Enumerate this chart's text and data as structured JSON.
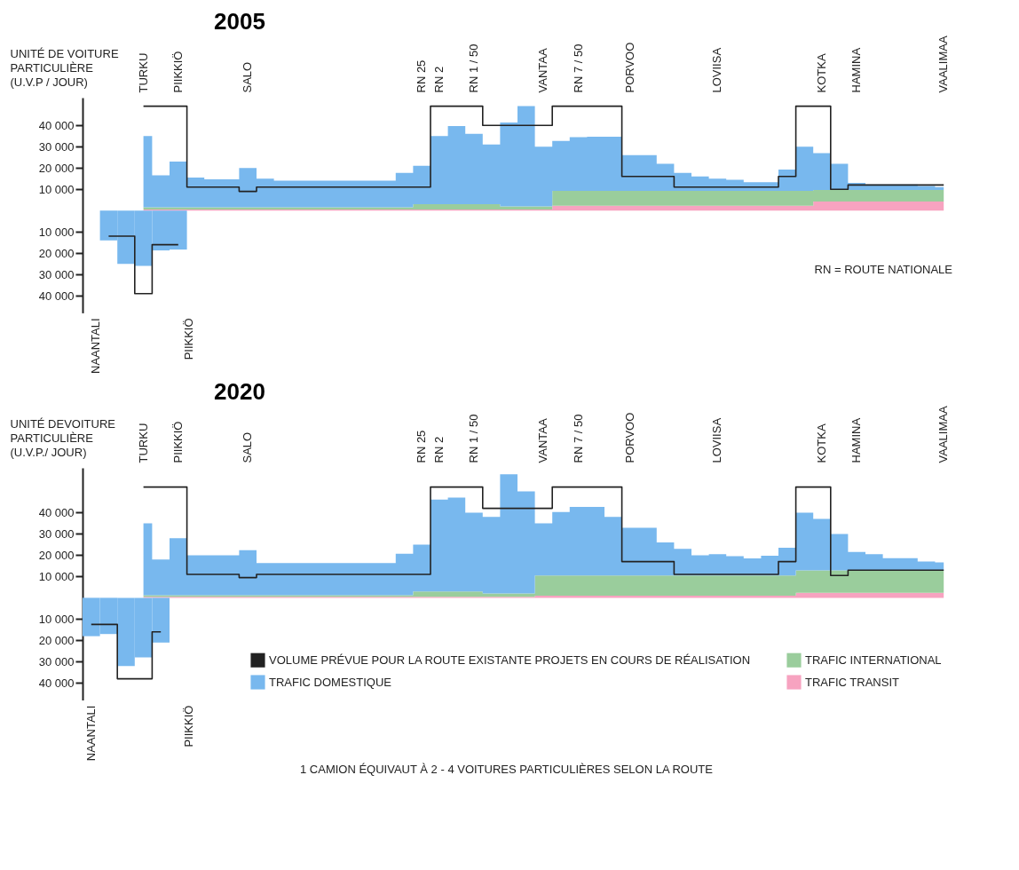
{
  "chart_data": [
    {
      "type": "area",
      "title": "2005",
      "ylabel": "UNITÉ DE VOITURE PARTICULIÈRE (U.V.P / JOUR)",
      "stacked": true,
      "categories": [
        null,
        null,
        null,
        "TURKU",
        null,
        "PIIKKIÖ",
        null,
        null,
        null,
        "SALO",
        null,
        null,
        null,
        null,
        null,
        null,
        null,
        null,
        null,
        "RN 25",
        "RN 2",
        null,
        "RN 1 / 50",
        null,
        null,
        null,
        "VANTAA",
        null,
        "RN 7 / 50",
        null,
        null,
        "PORVOO",
        null,
        null,
        null,
        null,
        "LOVIISA",
        null,
        null,
        null,
        null,
        null,
        "KOTKA",
        null,
        "HAMINA",
        null,
        null,
        null,
        null,
        "VAALIMAA"
      ],
      "ylim": [
        -48000,
        53000
      ],
      "yticks": [
        {
          "value": -40000,
          "label": "40 000"
        },
        {
          "value": -30000,
          "label": "30 000"
        },
        {
          "value": -20000,
          "label": "20 000"
        },
        {
          "value": -10000,
          "label": "10 000"
        },
        {
          "value": 10000,
          "label": "10 000"
        },
        {
          "value": 20000,
          "label": "20 000"
        },
        {
          "value": 30000,
          "label": "30 000"
        },
        {
          "value": 40000,
          "label": "40 000"
        }
      ],
      "series": [
        {
          "type": "step",
          "color": "#222222",
          "values": [
            null,
            null,
            null,
            49000,
            49000,
            49000,
            11000,
            11000,
            11000,
            9000,
            11000,
            11000,
            11000,
            11000,
            11000,
            11000,
            11000,
            11000,
            11000,
            11000,
            49000,
            49000,
            49000,
            40000,
            40000,
            40000,
            40000,
            49000,
            49000,
            49000,
            49000,
            16000,
            16000,
            16000,
            11000,
            11000,
            11000,
            11000,
            11000,
            11000,
            16000,
            49000,
            49000,
            10000,
            12000,
            12000,
            12000,
            12000,
            12000,
            12000
          ]
        },
        {
          "color": "#f7a3c0",
          "values": [
            null,
            null,
            null,
            500,
            500,
            500,
            500,
            500,
            500,
            500,
            500,
            500,
            500,
            500,
            500,
            500,
            500,
            500,
            500,
            500,
            500,
            500,
            500,
            500,
            500,
            500,
            500,
            2300,
            2300,
            2300,
            2300,
            2300,
            2300,
            2300,
            2300,
            2300,
            2300,
            2300,
            2300,
            2300,
            2300,
            2300,
            4300,
            4300,
            4300,
            4300,
            4300,
            4300,
            4300,
            4300
          ]
        },
        {
          "color": "#9acd9c",
          "values": [
            null,
            null,
            null,
            1000,
            1000,
            1000,
            1000,
            1000,
            1000,
            1000,
            1000,
            1000,
            1000,
            1000,
            1000,
            1000,
            1000,
            1000,
            1000,
            2500,
            2500,
            2500,
            2500,
            2500,
            1500,
            1500,
            1500,
            7000,
            7000,
            7000,
            7000,
            7000,
            7000,
            7000,
            7000,
            7000,
            7000,
            7000,
            7000,
            7000,
            7000,
            7000,
            5400,
            5400,
            5400,
            5400,
            5400,
            5400,
            5400,
            5400
          ]
        },
        {
          "color": "#78b8ee",
          "values": [
            null,
            null,
            null,
            33500,
            15000,
            21500,
            14000,
            13200,
            13200,
            18500,
            13500,
            12500,
            12500,
            12500,
            12500,
            12500,
            12500,
            12500,
            16200,
            18000,
            32000,
            36700,
            33000,
            28000,
            39300,
            47000,
            28000,
            23400,
            25200,
            25400,
            25400,
            16700,
            16700,
            12700,
            8400,
            6700,
            5700,
            5200,
            4000,
            4000,
            10000,
            20700,
            17300,
            12300,
            3300,
            2600,
            2600,
            2600,
            1800,
            1300
          ]
        },
        {
          "type": "bar",
          "color": "#78b8ee",
          "values": [
            null,
            -14000,
            -25000,
            -26000,
            -18700,
            -18300,
            null,
            null,
            null,
            null,
            null,
            null,
            null,
            null,
            null,
            null,
            null,
            null,
            null,
            null,
            null,
            null,
            null,
            null,
            null,
            null,
            null,
            null,
            null,
            null,
            null,
            null,
            null,
            null,
            null,
            null,
            null,
            null,
            null,
            null,
            null,
            null,
            null,
            null,
            null,
            null,
            null,
            null,
            null,
            null
          ]
        },
        {
          "type": "step",
          "color": "#222222",
          "values": [
            null,
            -12000,
            -12000,
            -39000,
            -16000,
            -16000,
            null,
            null,
            null,
            null,
            null,
            null,
            null,
            null,
            null,
            null,
            null,
            null,
            null,
            null,
            null,
            null,
            null,
            null,
            null,
            null,
            null,
            null,
            null,
            null,
            null,
            null,
            null,
            null,
            null,
            null,
            null,
            null,
            null,
            null,
            null,
            null,
            null,
            null,
            null,
            null,
            null,
            null,
            null,
            null
          ]
        }
      ],
      "annotations": [
        "NAANTALI",
        "PIIKKIÖ",
        "RN = ROUTE NATIONALE"
      ]
    },
    {
      "type": "area",
      "title": "2020",
      "ylabel": "UNITÉ DEVOITURE PARTICULIÈRE (U.V.P./ JOUR)",
      "stacked": true,
      "legend": "bottom right",
      "categories": [
        null,
        null,
        null,
        "TURKU",
        null,
        "PIIKKIÖ",
        null,
        null,
        null,
        "SALO",
        null,
        null,
        null,
        null,
        null,
        null,
        null,
        null,
        null,
        "RN 25",
        "RN 2",
        null,
        "RN 1 / 50",
        null,
        null,
        null,
        "VANTAA",
        null,
        "RN 7 / 50",
        null,
        null,
        "PORVOO",
        null,
        null,
        null,
        null,
        "LOVIISA",
        null,
        null,
        null,
        null,
        null,
        "KOTKA",
        null,
        "HAMINA",
        null,
        null,
        null,
        null,
        "VAALIMAA"
      ],
      "ylim": [
        -48000,
        61000
      ],
      "yticks": [
        {
          "value": -40000,
          "label": "40 000"
        },
        {
          "value": -30000,
          "label": "30 000"
        },
        {
          "value": -20000,
          "label": "20 000"
        },
        {
          "value": -10000,
          "label": "10 000"
        },
        {
          "value": 10000,
          "label": "10 000"
        },
        {
          "value": 20000,
          "label": "20 000"
        },
        {
          "value": 30000,
          "label": "30 000"
        },
        {
          "value": 40000,
          "label": "40 000"
        }
      ],
      "series": [
        {
          "type": "step",
          "name": "VOLUME PRÉVUE POUR LA ROUTE EXISTANTE PROJETS EN COURS DE RÉALISATION",
          "color": "#222222",
          "values": [
            null,
            null,
            null,
            52000,
            52000,
            52000,
            11000,
            11000,
            11000,
            9500,
            11000,
            11000,
            11000,
            11000,
            11000,
            11000,
            11000,
            11000,
            11000,
            11000,
            52000,
            52000,
            52000,
            42000,
            42000,
            42000,
            42000,
            52000,
            52000,
            52000,
            52000,
            17000,
            17000,
            17000,
            11000,
            11000,
            11000,
            11000,
            11000,
            11000,
            17000,
            52000,
            52000,
            10500,
            13000,
            13000,
            13000,
            13000,
            13000,
            13000
          ]
        },
        {
          "name": "TRAFIC TRANSIT",
          "color": "#f7a3c0",
          "values": [
            null,
            null,
            null,
            500,
            500,
            500,
            500,
            500,
            500,
            500,
            500,
            500,
            500,
            500,
            500,
            500,
            500,
            500,
            500,
            500,
            500,
            500,
            500,
            500,
            500,
            500,
            1000,
            1000,
            1000,
            1000,
            1000,
            1000,
            1000,
            1000,
            1000,
            1000,
            1000,
            1000,
            1000,
            1000,
            1000,
            2400,
            2400,
            2400,
            2400,
            2400,
            2400,
            2400,
            2400,
            2400
          ]
        },
        {
          "name": "TRAFIC INTERNATIONAL",
          "color": "#9acd9c",
          "values": [
            null,
            null,
            null,
            700,
            700,
            700,
            700,
            700,
            700,
            700,
            700,
            700,
            700,
            700,
            700,
            700,
            700,
            700,
            700,
            2500,
            2500,
            2500,
            2500,
            1500,
            1500,
            1500,
            9500,
            9500,
            9500,
            9500,
            9500,
            9500,
            9500,
            9500,
            9500,
            9500,
            9500,
            9500,
            9500,
            9500,
            9500,
            10500,
            10500,
            10500,
            10500,
            10500,
            10500,
            10500,
            10500,
            10500
          ]
        },
        {
          "name": "TRAFIC DOMESTIQUE",
          "color": "#78b8ee",
          "values": [
            null,
            null,
            null,
            33800,
            16800,
            26800,
            18800,
            18800,
            18800,
            21200,
            15100,
            15100,
            15100,
            15100,
            15100,
            15100,
            15100,
            15100,
            19500,
            22000,
            43100,
            44000,
            37000,
            36000,
            56000,
            48000,
            24500,
            29800,
            32200,
            32200,
            27500,
            22400,
            22400,
            15500,
            12500,
            9500,
            10000,
            9000,
            8000,
            9300,
            13000,
            27100,
            24100,
            17100,
            8600,
            7600,
            5700,
            5700,
            4100,
            3700
          ]
        },
        {
          "type": "bar",
          "color": "#78b8ee",
          "values": [
            -18000,
            -17000,
            -32000,
            -28000,
            -21000,
            null,
            null,
            null,
            null,
            null,
            null,
            null,
            null,
            null,
            null,
            null,
            null,
            null,
            null,
            null,
            null,
            null,
            null,
            null,
            null,
            null,
            null,
            null,
            null,
            null,
            null,
            null,
            null,
            null,
            null,
            null,
            null,
            null,
            null,
            null,
            null,
            null,
            null,
            null,
            null,
            null,
            null,
            null,
            null,
            null
          ]
        },
        {
          "type": "step",
          "color": "#222222",
          "values": [
            -12500,
            -12500,
            -38000,
            -38000,
            -16000,
            null,
            null,
            null,
            null,
            null,
            null,
            null,
            null,
            null,
            null,
            null,
            null,
            null,
            null,
            null,
            null,
            null,
            null,
            null,
            null,
            null,
            null,
            null,
            null,
            null,
            null,
            null,
            null,
            null,
            null,
            null,
            null,
            null,
            null,
            null,
            null,
            null,
            null,
            null,
            null,
            null,
            null,
            null,
            null,
            null
          ]
        }
      ],
      "annotations": [
        "NAANTALI",
        "PIIKKIÖ",
        "1 CAMION ÉQUIVAUT À 2 - 4 VOITURES PARTICULIÈRES SELON LA ROUTE"
      ]
    }
  ]
}
